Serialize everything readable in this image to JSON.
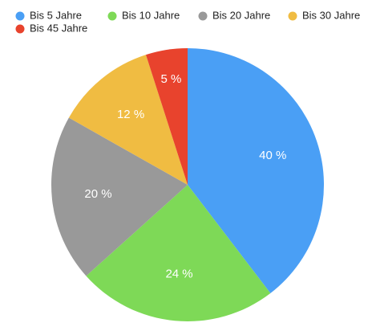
{
  "chart_data": {
    "type": "pie",
    "categories": [
      "Bis 5 Jahre",
      "Bis 10 Jahre",
      "Bis 20 Jahre",
      "Bis 30 Jahre",
      "Bis 45 Jahre"
    ],
    "values": [
      40,
      24,
      20,
      12,
      5
    ],
    "value_labels": [
      "40 %",
      "24 %",
      "20 %",
      "12 %",
      "5 %"
    ],
    "colors": [
      "#4a9ff5",
      "#7ed957",
      "#999999",
      "#f0bc42",
      "#e8432d"
    ]
  }
}
